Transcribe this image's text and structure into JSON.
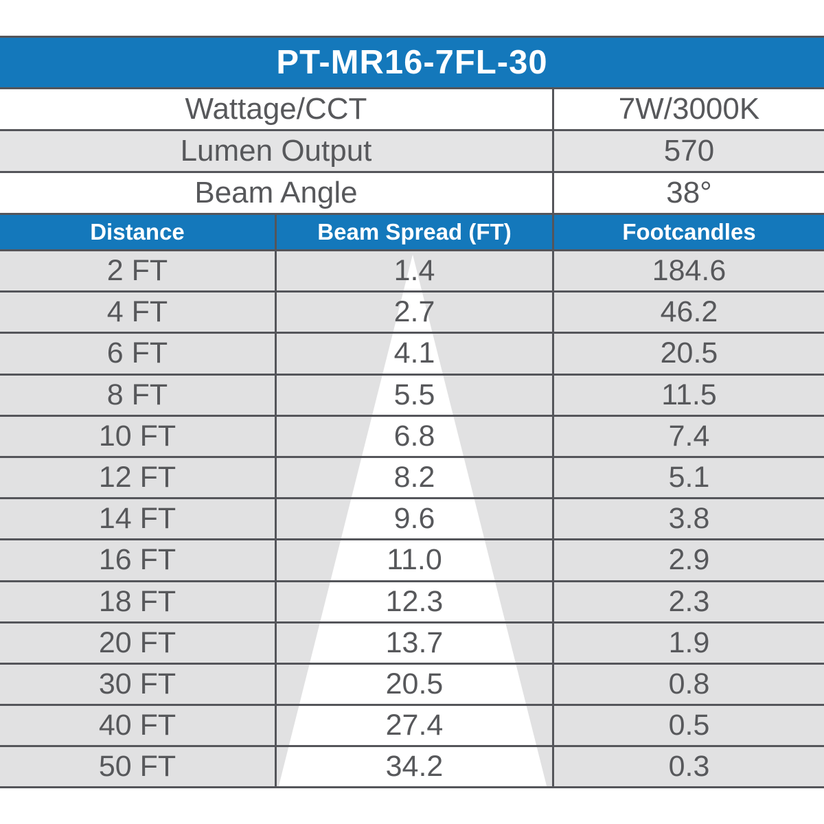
{
  "title": "PT-MR16-7FL-30",
  "specs": [
    {
      "label": "Wattage/CCT",
      "value": "7W/3000K"
    },
    {
      "label": "Lumen Output",
      "value": "570"
    },
    {
      "label": "Beam Angle",
      "value": "38°"
    }
  ],
  "table": {
    "columns": [
      "Distance",
      "Beam Spread (FT)",
      "Footcandles"
    ],
    "rows": [
      {
        "distance": "2 FT",
        "beam_spread": "1.4",
        "footcandles": "184.6"
      },
      {
        "distance": "4 FT",
        "beam_spread": "2.7",
        "footcandles": "46.2"
      },
      {
        "distance": "6 FT",
        "beam_spread": "4.1",
        "footcandles": "20.5"
      },
      {
        "distance": "8 FT",
        "beam_spread": "5.5",
        "footcandles": "11.5"
      },
      {
        "distance": "10 FT",
        "beam_spread": "6.8",
        "footcandles": "7.4"
      },
      {
        "distance": "12 FT",
        "beam_spread": "8.2",
        "footcandles": "5.1"
      },
      {
        "distance": "14 FT",
        "beam_spread": "9.6",
        "footcandles": "3.8"
      },
      {
        "distance": "16 FT",
        "beam_spread": "11.0",
        "footcandles": "2.9"
      },
      {
        "distance": "18 FT",
        "beam_spread": "12.3",
        "footcandles": "2.3"
      },
      {
        "distance": "20 FT",
        "beam_spread": "13.7",
        "footcandles": "1.9"
      },
      {
        "distance": "30 FT",
        "beam_spread": "20.5",
        "footcandles": "0.8"
      },
      {
        "distance": "40 FT",
        "beam_spread": "27.4",
        "footcandles": "0.5"
      },
      {
        "distance": "50 FT",
        "beam_spread": "34.2",
        "footcandles": "0.3"
      }
    ]
  },
  "colors": {
    "accent_blue": "#1478bb",
    "grid_line": "#54555a",
    "row_gray": "#e1e1e2",
    "spec_gray": "#e4e4e5",
    "text_dark": "#57585b",
    "beam_cone": "#ffffff"
  },
  "chart_data": {
    "type": "table",
    "title": "PT-MR16-7FL-30",
    "specs": {
      "wattage_cct": "7W/3000K",
      "lumen_output": 570,
      "beam_angle_deg": 38
    },
    "columns": [
      "Distance",
      "Beam Spread (FT)",
      "Footcandles"
    ],
    "distance_ft": [
      2,
      4,
      6,
      8,
      10,
      12,
      14,
      16,
      18,
      20,
      30,
      40,
      50
    ],
    "beam_spread_ft": [
      1.4,
      2.7,
      4.1,
      5.5,
      6.8,
      8.2,
      9.6,
      11.0,
      12.3,
      13.7,
      20.5,
      27.4,
      34.2
    ],
    "footcandles": [
      184.6,
      46.2,
      20.5,
      11.5,
      7.4,
      5.1,
      3.8,
      2.9,
      2.3,
      1.9,
      0.8,
      0.5,
      0.3
    ],
    "layout_hints": {
      "overlay": "white beam-cone triangle widening down the Beam Spread column",
      "grid": "dark horizontal and vertical rules",
      "header_fill": "#1478bb"
    }
  }
}
